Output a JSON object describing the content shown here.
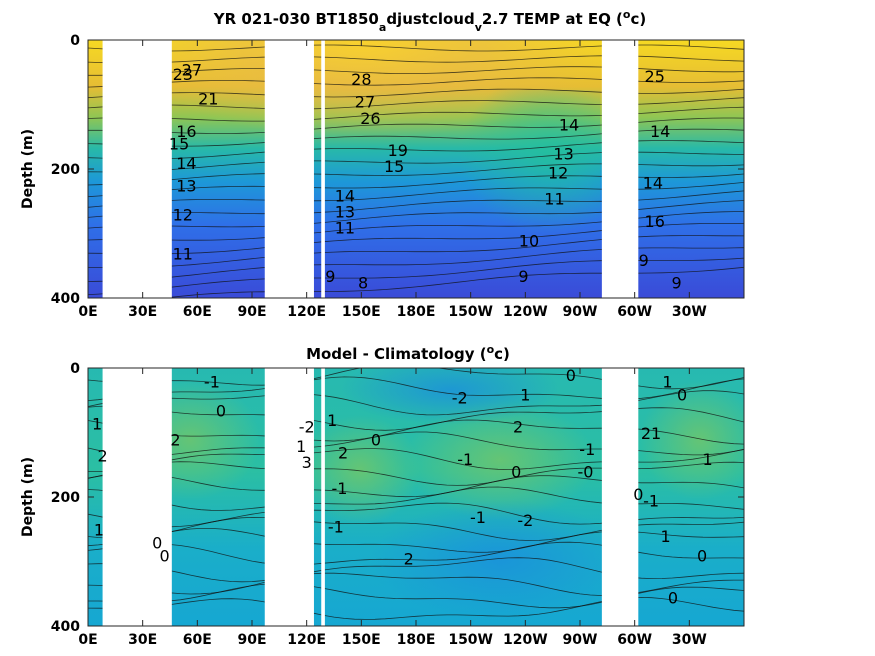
{
  "chart_data": [
    {
      "type": "heatmap",
      "title_main": "YR 021-030 BT1850",
      "title_sub1": "a",
      "title_mid": "djustcloud",
      "title_sub2": "v",
      "title_tail": "2.7 TEMP at EQ (",
      "title_sup": "o",
      "title_end": "c)",
      "ylabel": "Depth (m)",
      "xlabel": "",
      "x_ticks": [
        "0E",
        "30E",
        "60E",
        "90E",
        "120E",
        "150E",
        "180E",
        "150W",
        "120W",
        "90W",
        "60W",
        "30W"
      ],
      "y_ticks": [
        "0",
        "200",
        "400"
      ],
      "xlim": [
        0,
        360
      ],
      "ylim": [
        0,
        400
      ],
      "colormap": [
        "#3a3bd0",
        "#2f6fe6",
        "#1e9ad6",
        "#20b7a4",
        "#5cc46c",
        "#a9c743",
        "#e8bc33",
        "#f8e21f"
      ],
      "value_range": [
        8,
        29
      ],
      "land_gaps_lon": [
        [
          8,
          46
        ],
        [
          97,
          124
        ],
        [
          128,
          130
        ],
        [
          282,
          302
        ]
      ],
      "contour_labels": [
        {
          "text": "27",
          "lon": 57,
          "depth": 55
        },
        {
          "text": "23",
          "lon": 52,
          "depth": 62
        },
        {
          "text": "21",
          "lon": 66,
          "depth": 100
        },
        {
          "text": "16",
          "lon": 54,
          "depth": 150
        },
        {
          "text": "15",
          "lon": 50,
          "depth": 170
        },
        {
          "text": "14",
          "lon": 54,
          "depth": 200
        },
        {
          "text": "13",
          "lon": 54,
          "depth": 235
        },
        {
          "text": "12",
          "lon": 52,
          "depth": 280
        },
        {
          "text": "11",
          "lon": 52,
          "depth": 340
        },
        {
          "text": "28",
          "lon": 150,
          "depth": 70
        },
        {
          "text": "27",
          "lon": 152,
          "depth": 105
        },
        {
          "text": "26",
          "lon": 155,
          "depth": 130
        },
        {
          "text": "19",
          "lon": 170,
          "depth": 180
        },
        {
          "text": "15",
          "lon": 168,
          "depth": 205
        },
        {
          "text": "14",
          "lon": 141,
          "depth": 250
        },
        {
          "text": "13",
          "lon": 141,
          "depth": 275
        },
        {
          "text": "11",
          "lon": 141,
          "depth": 300
        },
        {
          "text": "9",
          "lon": 133,
          "depth": 375
        },
        {
          "text": "8",
          "lon": 151,
          "depth": 385
        },
        {
          "text": "14",
          "lon": 264,
          "depth": 140
        },
        {
          "text": "13",
          "lon": 261,
          "depth": 185
        },
        {
          "text": "12",
          "lon": 258,
          "depth": 215
        },
        {
          "text": "11",
          "lon": 256,
          "depth": 255
        },
        {
          "text": "10",
          "lon": 242,
          "depth": 320
        },
        {
          "text": "9",
          "lon": 239,
          "depth": 375
        },
        {
          "text": "25",
          "lon": 311,
          "depth": 65
        },
        {
          "text": "14",
          "lon": 314,
          "depth": 150
        },
        {
          "text": "14",
          "lon": 310,
          "depth": 230
        },
        {
          "text": "16",
          "lon": 311,
          "depth": 290
        },
        {
          "text": "9",
          "lon": 305,
          "depth": 350
        },
        {
          "text": "9",
          "lon": 323,
          "depth": 385
        }
      ]
    },
    {
      "type": "heatmap",
      "title_main": "Model - Climatology (",
      "title_sup": "o",
      "title_end": "c)",
      "ylabel": "Depth (m)",
      "xlabel": "",
      "x_ticks": [
        "0E",
        "30E",
        "60E",
        "90E",
        "120E",
        "150E",
        "180E",
        "150W",
        "120W",
        "90W",
        "60W",
        "30W"
      ],
      "y_ticks": [
        "0",
        "200",
        "400"
      ],
      "xlim": [
        0,
        360
      ],
      "ylim": [
        0,
        400
      ],
      "colormap": [
        "#1f96d8",
        "#12a9d0",
        "#1bb7bc",
        "#2bbfa5",
        "#4cc48a",
        "#70c56c",
        "#9dc54a"
      ],
      "value_range": [
        -3,
        3
      ],
      "land_gaps_lon": [
        [
          8,
          46
        ],
        [
          97,
          124
        ],
        [
          128,
          130
        ],
        [
          282,
          302
        ]
      ],
      "contour_labels": [
        {
          "text": "1",
          "lon": 5,
          "depth": 95
        },
        {
          "text": "2",
          "lon": 8,
          "depth": 145
        },
        {
          "text": "1",
          "lon": 6,
          "depth": 260
        },
        {
          "text": "-1",
          "lon": 68,
          "depth": 30
        },
        {
          "text": "0",
          "lon": 73,
          "depth": 75
        },
        {
          "text": "2",
          "lon": 48,
          "depth": 120
        },
        {
          "text": "0",
          "lon": 38,
          "depth": 280
        },
        {
          "text": "0",
          "lon": 42,
          "depth": 300
        },
        {
          "text": "-2",
          "lon": 120,
          "depth": 100
        },
        {
          "text": "1",
          "lon": 117,
          "depth": 130
        },
        {
          "text": "3",
          "lon": 120,
          "depth": 155
        },
        {
          "text": "1",
          "lon": 134,
          "depth": 90
        },
        {
          "text": "2",
          "lon": 140,
          "depth": 140
        },
        {
          "text": "-1",
          "lon": 138,
          "depth": 195
        },
        {
          "text": "-1",
          "lon": 136,
          "depth": 255
        },
        {
          "text": "0",
          "lon": 158,
          "depth": 120
        },
        {
          "text": "-2",
          "lon": 204,
          "depth": 55
        },
        {
          "text": "1",
          "lon": 240,
          "depth": 50
        },
        {
          "text": "2",
          "lon": 236,
          "depth": 100
        },
        {
          "text": "-1",
          "lon": 207,
          "depth": 150
        },
        {
          "text": "0",
          "lon": 235,
          "depth": 170
        },
        {
          "text": "-1",
          "lon": 214,
          "depth": 240
        },
        {
          "text": "-2",
          "lon": 240,
          "depth": 245
        },
        {
          "text": "0",
          "lon": 265,
          "depth": 20
        },
        {
          "text": "-1",
          "lon": 274,
          "depth": 135
        },
        {
          "text": "-0",
          "lon": 273,
          "depth": 170
        },
        {
          "text": "2",
          "lon": 176,
          "depth": 305
        },
        {
          "text": "1",
          "lon": 318,
          "depth": 30
        },
        {
          "text": "0",
          "lon": 326,
          "depth": 50
        },
        {
          "text": "21",
          "lon": 309,
          "depth": 110
        },
        {
          "text": "1",
          "lon": 340,
          "depth": 150
        },
        {
          "text": "-1",
          "lon": 309,
          "depth": 215
        },
        {
          "text": "0",
          "lon": 302,
          "depth": 205
        },
        {
          "text": "0",
          "lon": 337,
          "depth": 300
        },
        {
          "text": "1",
          "lon": 317,
          "depth": 270
        },
        {
          "text": "0",
          "lon": 321,
          "depth": 365
        }
      ]
    }
  ]
}
